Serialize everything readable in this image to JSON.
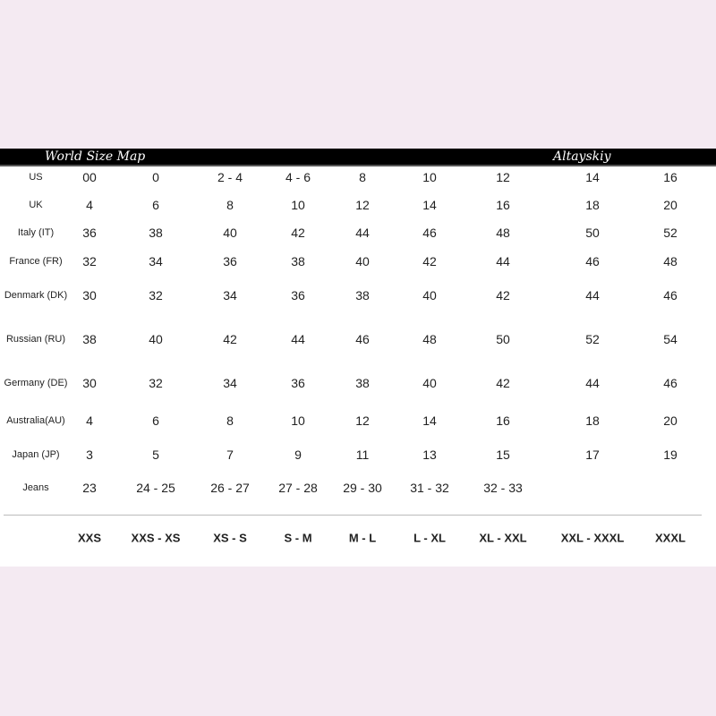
{
  "header": {
    "title": "World Size Map",
    "brand": "Altayskiy"
  },
  "rows": [
    {
      "label": "US",
      "values": [
        "00",
        "0",
        "2 - 4",
        "4 - 6",
        "8",
        "10",
        "12",
        "14",
        "16"
      ]
    },
    {
      "label": "UK",
      "values": [
        "4",
        "6",
        "8",
        "10",
        "12",
        "14",
        "16",
        "18",
        "20"
      ]
    },
    {
      "label": "Italy (IT)",
      "values": [
        "36",
        "38",
        "40",
        "42",
        "44",
        "46",
        "48",
        "50",
        "52"
      ]
    },
    {
      "label": "France (FR)",
      "values": [
        "32",
        "34",
        "36",
        "38",
        "40",
        "42",
        "44",
        "46",
        "48"
      ]
    },
    {
      "label": "Denmark (DK)",
      "values": [
        "30",
        "32",
        "34",
        "36",
        "38",
        "40",
        "42",
        "44",
        "46"
      ]
    },
    {
      "label": "Russian (RU)",
      "values": [
        "38",
        "40",
        "42",
        "44",
        "46",
        "48",
        "50",
        "52",
        "54"
      ]
    },
    {
      "label": "Germany (DE)",
      "values": [
        "30",
        "32",
        "34",
        "36",
        "38",
        "40",
        "42",
        "44",
        "46"
      ]
    },
    {
      "label": "Australia(AU)",
      "values": [
        "4",
        "6",
        "8",
        "10",
        "12",
        "14",
        "16",
        "18",
        "20"
      ]
    },
    {
      "label": "Japan (JP)",
      "values": [
        "3",
        "5",
        "7",
        "9",
        "11",
        "13",
        "15",
        "17",
        "19"
      ]
    },
    {
      "label": "Jeans",
      "values": [
        "23",
        "24 - 25",
        "26 - 27",
        "27 - 28",
        "29 - 30",
        "31 - 32",
        "32 - 33",
        "",
        ""
      ]
    }
  ],
  "sizes": [
    "XXS",
    "XXS - XS",
    "XS - S",
    "S - M",
    "M - L",
    "L - XL",
    "XL - XXL",
    "XXL - XXXL",
    "XXXL"
  ]
}
